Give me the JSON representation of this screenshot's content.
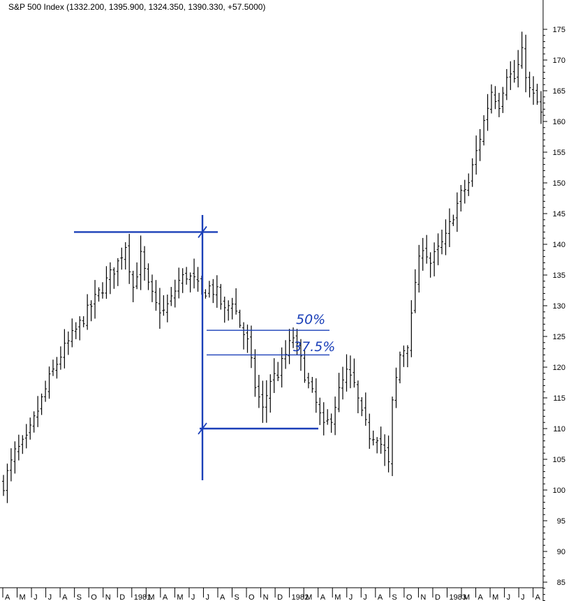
{
  "chart_data": {
    "type": "bar",
    "subtype": "ohlc-weekly",
    "title": "S&P 500 Index (1332.200, 1395.900, 1324.350, 1390.330, +57.5000)",
    "xlabel": "",
    "ylabel": "",
    "ylim": [
      84,
      177
    ],
    "y_axis_position": "right",
    "grid": false,
    "y_ticks": [
      85,
      90,
      95,
      100,
      105,
      110,
      115,
      120,
      125,
      130,
      135,
      140,
      145,
      150,
      155,
      160,
      165,
      170,
      175
    ],
    "x_tick_labels": [
      "A",
      "M",
      "J",
      "J",
      "A",
      "S",
      "O",
      "N",
      "D",
      "1981",
      "M",
      "A",
      "M",
      "J",
      "J",
      "A",
      "S",
      "O",
      "N",
      "D",
      "1982",
      "M",
      "A",
      "M",
      "J",
      "J",
      "A",
      "S",
      "O",
      "N",
      "D",
      "1983",
      "M",
      "A",
      "M",
      "J",
      "J",
      "A"
    ],
    "bar_color": "#000000",
    "close_path": [
      [
        0,
        101
      ],
      [
        3,
        106
      ],
      [
        6,
        108
      ],
      [
        9,
        113
      ],
      [
        12,
        118
      ],
      [
        15,
        122
      ],
      [
        18,
        125
      ],
      [
        20,
        127
      ],
      [
        23,
        130
      ],
      [
        26,
        133
      ],
      [
        30,
        137
      ],
      [
        32,
        140
      ],
      [
        34,
        133
      ],
      [
        36,
        138
      ],
      [
        38,
        133
      ],
      [
        40,
        130
      ],
      [
        42,
        129
      ],
      [
        44,
        131
      ],
      [
        46,
        134
      ],
      [
        48,
        135
      ],
      [
        50,
        134
      ],
      [
        52,
        132
      ],
      [
        54,
        133
      ],
      [
        56,
        132
      ],
      [
        58,
        129
      ],
      [
        60,
        131
      ],
      [
        62,
        127
      ],
      [
        64,
        124
      ],
      [
        66,
        117
      ],
      [
        68,
        113
      ],
      [
        70,
        118
      ],
      [
        72,
        119
      ],
      [
        74,
        122
      ],
      [
        76,
        125
      ],
      [
        78,
        121
      ],
      [
        80,
        117
      ],
      [
        82,
        114
      ],
      [
        84,
        110
      ],
      [
        86,
        112
      ],
      [
        88,
        116
      ],
      [
        90,
        119
      ],
      [
        92,
        117
      ],
      [
        94,
        112
      ],
      [
        96,
        109
      ],
      [
        98,
        109
      ],
      [
        100,
        106
      ],
      [
        101,
        104
      ],
      [
        102,
        114
      ],
      [
        104,
        122
      ],
      [
        106,
        124
      ],
      [
        107,
        128
      ],
      [
        108,
        134
      ],
      [
        110,
        140
      ],
      [
        112,
        137
      ],
      [
        114,
        139
      ],
      [
        116,
        141
      ],
      [
        118,
        145
      ],
      [
        120,
        148
      ],
      [
        122,
        150
      ],
      [
        124,
        155
      ],
      [
        126,
        160
      ],
      [
        128,
        165
      ],
      [
        130,
        163
      ],
      [
        132,
        168
      ],
      [
        134,
        167
      ],
      [
        136,
        171
      ],
      [
        138,
        165
      ],
      [
        140,
        163
      ],
      [
        141,
        161
      ]
    ],
    "annotations": {
      "retrace_50": "50%",
      "retrace_375": "37.5%"
    },
    "annotation_levels": {
      "top": 142,
      "bottom": 110,
      "retrace_50": 126,
      "retrace_375": 122
    },
    "annotation_color": "#1a3fb8"
  }
}
